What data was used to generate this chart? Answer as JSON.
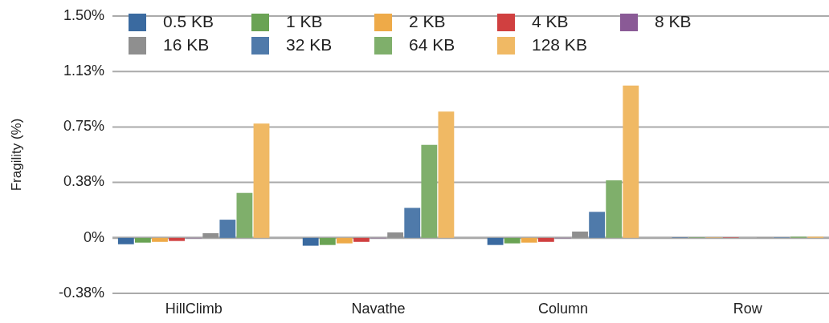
{
  "chart_data": {
    "type": "bar",
    "ylabel": "Fragility (%)",
    "categories": [
      "HillClimb",
      "Navathe",
      "Column",
      "Row"
    ],
    "series": [
      {
        "name": "0.5 KB",
        "color": "#3a6aa0",
        "values": [
          -0.043,
          -0.053,
          -0.048,
          0.003
        ]
      },
      {
        "name": "1 KB",
        "color": "#6aa354",
        "values": [
          -0.032,
          -0.048,
          -0.037,
          0.003
        ]
      },
      {
        "name": "2 KB",
        "color": "#eeaa48",
        "values": [
          -0.027,
          -0.037,
          -0.032,
          0.002
        ]
      },
      {
        "name": "4 KB",
        "color": "#d04040",
        "values": [
          -0.021,
          -0.027,
          -0.027,
          0.003
        ]
      },
      {
        "name": "8 KB",
        "color": "#8a5a96",
        "values": [
          0,
          0,
          0,
          null
        ]
      },
      {
        "name": "16 KB",
        "color": "#8f8f8f",
        "values": [
          0.032,
          0.037,
          0.043,
          0.002
        ]
      },
      {
        "name": "32 KB",
        "color": "#4f7aaa",
        "values": [
          0.123,
          0.203,
          0.176,
          0.003
        ]
      },
      {
        "name": "64 KB",
        "color": "#7faf6b",
        "values": [
          0.304,
          0.629,
          0.389,
          0.008
        ]
      },
      {
        "name": "128 KB",
        "color": "#f0b964",
        "values": [
          0.773,
          0.854,
          1.03,
          0.008
        ]
      }
    ],
    "ylim": [
      -0.375,
      1.5
    ],
    "yticks": [
      {
        "value": -0.375,
        "label": "-0.38%"
      },
      {
        "value": 0,
        "label": "0%"
      },
      {
        "value": 0.375,
        "label": "0.38%"
      },
      {
        "value": 0.75,
        "label": "0.75%"
      },
      {
        "value": 1.125,
        "label": "1.13%"
      },
      {
        "value": 1.5,
        "label": "1.50%"
      }
    ],
    "grid": "y",
    "legend": "top left"
  }
}
